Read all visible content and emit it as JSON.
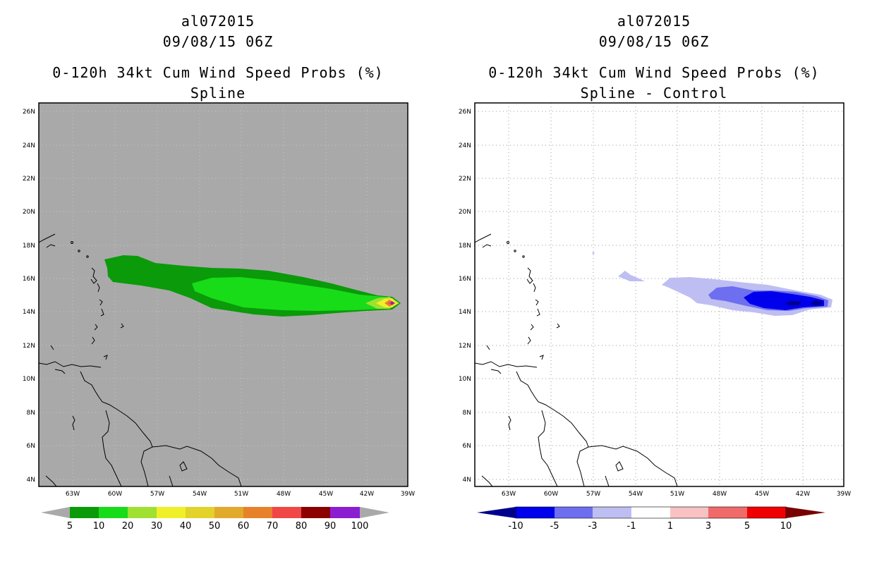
{
  "panels": [
    {
      "storm_id": "al072015",
      "datetime": "09/08/15 06Z",
      "product": "0-120h 34kt Cum Wind Speed Probs (%)",
      "subtitle": "Spline",
      "background": "#a9a9a9",
      "colorbar": {
        "labels": [
          "5",
          "10",
          "20",
          "30",
          "40",
          "50",
          "60",
          "70",
          "80",
          "90",
          "100"
        ],
        "colors": [
          "#0a9a0a",
          "#18dc18",
          "#a0e032",
          "#f0f02a",
          "#e2d22a",
          "#e2aa2a",
          "#e8822a",
          "#f04646",
          "#8c0000",
          "#8c1ed2"
        ],
        "end_color": "#a9a9a9"
      }
    },
    {
      "storm_id": "al072015",
      "datetime": "09/08/15 06Z",
      "product": "0-120h 34kt Cum Wind Speed Probs (%)",
      "subtitle": "Spline - Control",
      "background": "#ffffff",
      "colorbar": {
        "labels": [
          "-10",
          "-5",
          "-3",
          "-1",
          "1",
          "3",
          "5",
          "10"
        ],
        "colors": [
          "#0000ec",
          "#6e6ef0",
          "#bebef2",
          "#ffffff",
          "#f8c2c2",
          "#f06a6a",
          "#f00000"
        ],
        "low_end_color": "#00008c",
        "high_end_color": "#780000"
      }
    }
  ],
  "map": {
    "lon_labels": [
      "63W",
      "60W",
      "57W",
      "54W",
      "51W",
      "48W",
      "45W",
      "42W",
      "39W"
    ],
    "lat_labels": [
      "26N",
      "24N",
      "22N",
      "20N",
      "18N",
      "16N",
      "14N",
      "12N",
      "10N",
      "8N",
      "6N",
      "4N"
    ],
    "lon_range": [
      -65,
      -39
    ],
    "lat_range": [
      3.6,
      26.5
    ]
  }
}
